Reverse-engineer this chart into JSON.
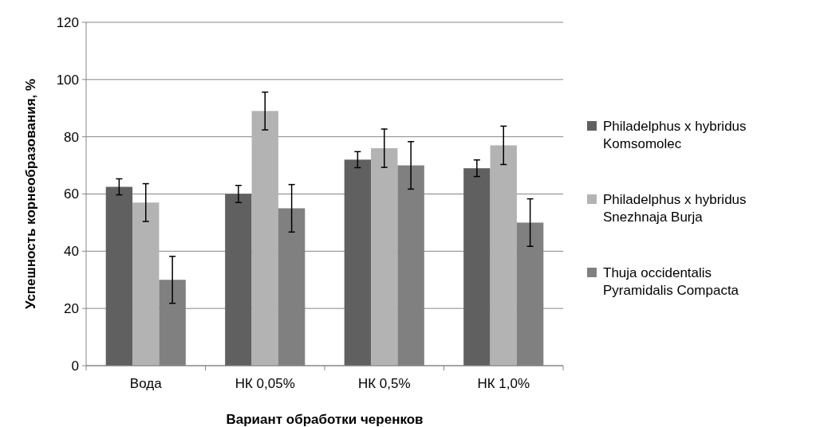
{
  "chart_data": {
    "type": "bar",
    "xlabel": "Вариант обработки черенков",
    "ylabel": "Успешность корнеобразования, %",
    "categories": [
      "Вода",
      "НК 0,05%",
      "НК 0,5%",
      "НК 1,0%"
    ],
    "series": [
      {
        "name": "Philadelphus x hybridus Komsomolec",
        "color": "#606060",
        "values": [
          62.5,
          60,
          72,
          69
        ],
        "errors": [
          2.8,
          3,
          2.8,
          2.9
        ]
      },
      {
        "name": "Philadelphus x hybridus Snezhnaja Burja",
        "color": "#b3b3b3",
        "values": [
          57,
          89,
          76,
          77
        ],
        "errors": [
          6.6,
          6.6,
          6.7,
          6.7
        ]
      },
      {
        "name": "Thuja occidentalis Pyramidalis Compacta",
        "color": "#808080",
        "values": [
          30,
          55,
          70,
          50
        ],
        "errors": [
          8.2,
          8.3,
          8.3,
          8.3
        ]
      }
    ],
    "ylim": [
      0,
      120
    ],
    "yticks": [
      0,
      20,
      40,
      60,
      80,
      100,
      120
    ],
    "grid": "y",
    "legend": "right"
  }
}
